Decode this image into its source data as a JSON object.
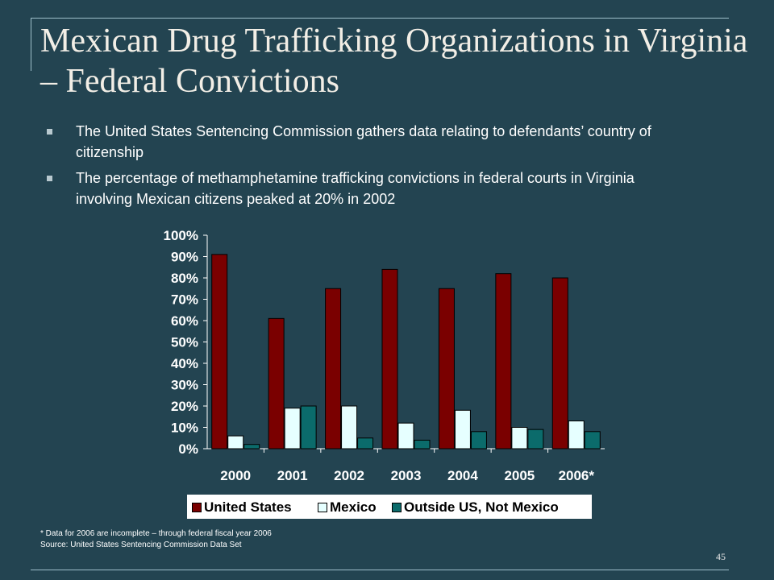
{
  "slide": {
    "title": "Mexican Drug Trafficking Organizations in Virginia – Federal Convictions",
    "bullets": [
      "The United States Sentencing Commission gathers data relating to defendants’ country of citizenship",
      "The percentage of methamphetamine trafficking convictions in federal courts in Virginia involving Mexican citizens peaked at 20% in 2002"
    ],
    "footnote": "* Data for 2006 are incomplete – through federal fiscal year 2006",
    "source": "Source:  United States Sentencing Commission Data Set",
    "page_number": "45"
  },
  "colors": {
    "background": "#234451",
    "united_states": "#7a0000",
    "mexico": "#e6ffff",
    "outside": "#0b6b6b"
  },
  "chart_data": {
    "type": "bar",
    "categories": [
      "2000",
      "2001",
      "2002",
      "2003",
      "2004",
      "2005",
      "2006*"
    ],
    "series": [
      {
        "name": "United States",
        "values": [
          91,
          61,
          75,
          84,
          75,
          82,
          80
        ]
      },
      {
        "name": "Mexico",
        "values": [
          6,
          19,
          20,
          12,
          18,
          10,
          13
        ]
      },
      {
        "name": "Outside US, Not Mexico",
        "values": [
          2,
          20,
          5,
          4,
          8,
          9,
          8
        ]
      }
    ],
    "y_ticks": [
      "0%",
      "10%",
      "20%",
      "30%",
      "40%",
      "50%",
      "60%",
      "70%",
      "80%",
      "90%",
      "100%"
    ],
    "ylim": [
      0,
      100
    ],
    "legend_position": "bottom",
    "grid": false
  }
}
